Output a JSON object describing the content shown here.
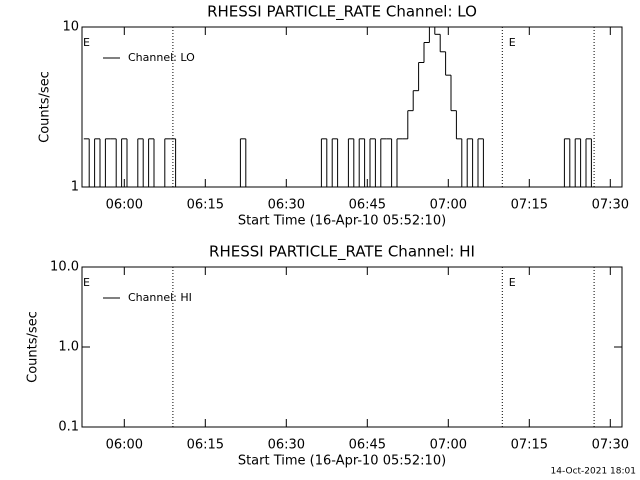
{
  "chart_data": [
    {
      "type": "line",
      "title": "RHESSI PARTICLE_RATE Channel: LO",
      "xlabel": "Start Time (16-Apr-10 05:52:10)",
      "ylabel": "Counts/sec",
      "log_y": true,
      "ylim": [
        1,
        10
      ],
      "yticks": [
        1,
        10
      ],
      "xlim": [
        "05:52:10",
        "07:32:10"
      ],
      "xticks": [
        "06:00",
        "06:15",
        "06:30",
        "06:45",
        "07:00",
        "07:15",
        "07:30"
      ],
      "vlines": [
        "06:09",
        "07:10",
        "07:27"
      ],
      "annotations": [
        {
          "text": "E",
          "x": "05:52:10"
        },
        {
          "text": "E",
          "x": "07:11"
        }
      ],
      "legend": "upper left",
      "x": [
        "05:53",
        "05:54",
        "05:55",
        "05:56",
        "05:57",
        "05:58",
        "05:59",
        "06:00",
        "06:01",
        "06:02",
        "06:03",
        "06:04",
        "06:05",
        "06:06",
        "06:07",
        "06:08",
        "06:09",
        "06:10",
        "06:11",
        "06:12",
        "06:13",
        "06:14",
        "06:15",
        "06:16",
        "06:17",
        "06:18",
        "06:19",
        "06:20",
        "06:21",
        "06:22",
        "06:23",
        "06:24",
        "06:25",
        "06:26",
        "06:27",
        "06:28",
        "06:29",
        "06:30",
        "06:31",
        "06:32",
        "06:33",
        "06:34",
        "06:35",
        "06:36",
        "06:37",
        "06:38",
        "06:39",
        "06:40",
        "06:41",
        "06:42",
        "06:43",
        "06:44",
        "06:45",
        "06:46",
        "06:47",
        "06:48",
        "06:49",
        "06:50",
        "06:51",
        "06:52",
        "06:53",
        "06:54",
        "06:55",
        "06:56",
        "06:57",
        "06:58",
        "06:59",
        "07:00",
        "07:01",
        "07:02",
        "07:03",
        "07:04",
        "07:05",
        "07:06",
        "07:07",
        "07:08",
        "07:09",
        "07:10",
        "07:11",
        "07:12",
        "07:13",
        "07:14",
        "07:15",
        "07:16",
        "07:17",
        "07:18",
        "07:19",
        "07:20",
        "07:21",
        "07:22",
        "07:23",
        "07:24",
        "07:25",
        "07:26",
        "07:27"
      ],
      "series": [
        {
          "name": "Channel: LO",
          "color": "#000000",
          "values": [
            2,
            1,
            2,
            1,
            2,
            2,
            1,
            2,
            1,
            1,
            2,
            1,
            2,
            1,
            1,
            2,
            2,
            1,
            1,
            1,
            1,
            1,
            1,
            1,
            1,
            1,
            1,
            1,
            1,
            2,
            1,
            1,
            1,
            1,
            1,
            1,
            1,
            1,
            1,
            1,
            1,
            1,
            1,
            1,
            2,
            1,
            2,
            1,
            1,
            2,
            1,
            2,
            1,
            2,
            1,
            2,
            2,
            1,
            2,
            2,
            3,
            4,
            6,
            8,
            10,
            9,
            7,
            5,
            3,
            2,
            1,
            2,
            1,
            2,
            1,
            1,
            1,
            1,
            1,
            1,
            1,
            1,
            1,
            1,
            1,
            1,
            1,
            1,
            1,
            2,
            1,
            2,
            1,
            2,
            1
          ]
        }
      ]
    },
    {
      "type": "line",
      "title": "RHESSI PARTICLE_RATE Channel: HI",
      "xlabel": "Start Time (16-Apr-10 05:52:10)",
      "ylabel": "Counts/sec",
      "log_y": true,
      "ylim": [
        0.1,
        10
      ],
      "yticks": [
        {
          "value": 0.1,
          "label": "0.1"
        },
        {
          "value": 1,
          "label": "1.0"
        },
        {
          "value": 10,
          "label": "10.0"
        }
      ],
      "xlim": [
        "05:52:10",
        "07:32:10"
      ],
      "xticks": [
        "06:00",
        "06:15",
        "06:30",
        "06:45",
        "07:00",
        "07:15",
        "07:30"
      ],
      "vlines": [
        "06:09",
        "07:10",
        "07:27"
      ],
      "annotations": [
        {
          "text": "E",
          "x": "05:52:10"
        },
        {
          "text": "E",
          "x": "07:11"
        }
      ],
      "legend": "upper left",
      "x": [],
      "series": [
        {
          "name": "Channel: HI",
          "color": "#000000",
          "values": []
        }
      ]
    }
  ],
  "footer": "14-Oct-2021 18:01"
}
